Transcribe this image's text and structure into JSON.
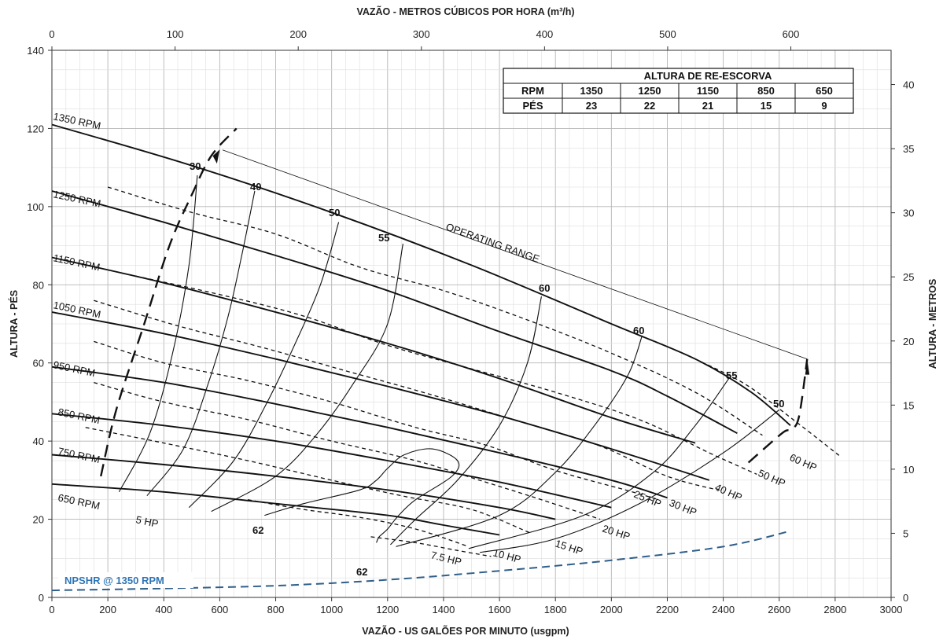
{
  "chart_data": {
    "type": "line",
    "title": "",
    "xlabel": "VAZÃO - US GALÕES POR MINUTO (usgpm)",
    "x2label": "VAZÃO - METROS CÚBICOS POR HORA (m³/h)",
    "ylabel": "ALTURA - PÉS",
    "y2label": "ALTURA - METROS",
    "xlim": [
      0,
      3000
    ],
    "ylim": [
      0,
      140
    ],
    "x2lim": [
      0,
      681.4
    ],
    "y2lim": [
      0,
      42.67
    ],
    "x_ticks": [
      "0",
      "200",
      "400",
      "600",
      "800",
      "1000",
      "1200",
      "1400",
      "1600",
      "1800",
      "2000",
      "2200",
      "2400",
      "2600",
      "2800",
      "3000"
    ],
    "y_ticks": [
      "0",
      "20",
      "40",
      "60",
      "80",
      "100",
      "120",
      "140"
    ],
    "x2_ticks": [
      "0",
      "100",
      "200",
      "300",
      "400",
      "500",
      "600"
    ],
    "y2_ticks": [
      "0",
      "5",
      "10",
      "15",
      "20",
      "25",
      "30",
      "35",
      "40"
    ],
    "grid": true,
    "head_curves": [
      {
        "name": "1350 RPM",
        "x": [
          0,
          500,
          1000,
          1500,
          2000,
          2300,
          2500,
          2640
        ],
        "y": [
          121,
          110.5,
          98.5,
          85,
          70,
          61,
          52.5,
          44
        ]
      },
      {
        "name": "1250 RPM",
        "x": [
          0,
          400,
          800,
          1200,
          1600,
          2000,
          2200,
          2450
        ],
        "y": [
          104,
          96,
          87.5,
          78.5,
          68,
          58,
          51.5,
          42
        ]
      },
      {
        "name": "1150 RPM",
        "x": [
          0,
          400,
          800,
          1200,
          1600,
          2000,
          2300
        ],
        "y": [
          87,
          80.5,
          73,
          65,
          56,
          46,
          39.5
        ]
      },
      {
        "name": "1050 RPM",
        "x": [
          0,
          400,
          800,
          1200,
          1600,
          2000,
          2350
        ],
        "y": [
          73,
          67.5,
          61,
          54,
          46.5,
          38,
          30
        ]
      },
      {
        "name": "950 RPM",
        "x": [
          0,
          400,
          800,
          1200,
          1600,
          2000,
          2200
        ],
        "y": [
          59,
          55,
          49.5,
          43.5,
          37,
          30,
          25.5
        ]
      },
      {
        "name": "850 RPM",
        "x": [
          0,
          400,
          800,
          1200,
          1600,
          2000
        ],
        "y": [
          47,
          44,
          40,
          35,
          29.5,
          23
        ]
      },
      {
        "name": "750 RPM",
        "x": [
          0,
          400,
          800,
          1200,
          1600,
          1800
        ],
        "y": [
          36.5,
          34,
          31,
          27.5,
          23,
          20
        ]
      },
      {
        "name": "650 RPM",
        "x": [
          0,
          400,
          800,
          1200,
          1400,
          1600
        ],
        "y": [
          29,
          27,
          24,
          21,
          18.5,
          16
        ]
      }
    ],
    "power_curves": [
      {
        "name": "60 HP",
        "x": [
          2300,
          2480,
          2650,
          2820
        ],
        "y": [
          61,
          54.5,
          45.5,
          36
        ]
      },
      {
        "name": "50 HP",
        "x": [
          200,
          500,
          800,
          1100,
          1400,
          1700,
          2000,
          2300,
          2540
        ],
        "y": [
          105,
          98.5,
          93,
          84.5,
          78.5,
          71,
          62.5,
          52.5,
          41.5
        ]
      },
      {
        "name": "40 HP",
        "x": [
          250,
          600,
          900,
          1200,
          1500,
          1800,
          2100,
          2350,
          2520
        ],
        "y": [
          83,
          77.5,
          72,
          64.5,
          58.5,
          52.5,
          45.5,
          37,
          31.5
        ]
      },
      {
        "name": "30 HP",
        "x": [
          150,
          450,
          750,
          1050,
          1350,
          1650,
          1950,
          2200,
          2380
        ],
        "y": [
          76,
          69.5,
          64,
          58,
          52,
          45.5,
          39,
          31,
          27.5
        ]
      },
      {
        "name": "25 HP",
        "x": [
          150,
          400,
          700,
          1000,
          1300,
          1550,
          1800,
          2050,
          2170
        ],
        "y": [
          65.5,
          60,
          55.5,
          50,
          43.5,
          39,
          32.5,
          27.5,
          25
        ]
      },
      {
        "name": "20 HP",
        "x": [
          150,
          400,
          700,
          1000,
          1300,
          1550,
          1750,
          1960
        ],
        "y": [
          55,
          50,
          45.5,
          40,
          35,
          29.5,
          25,
          20
        ]
      },
      {
        "name": "15 HP",
        "x": [
          120,
          400,
          700,
          1000,
          1250,
          1500,
          1710
        ],
        "y": [
          43.5,
          39.5,
          35,
          30,
          26,
          22.5,
          16.5
        ]
      },
      {
        "name": "10 HP",
        "x": [
          1140,
          1300,
          1450,
          1570
        ],
        "y": [
          15.5,
          14,
          12,
          10.5
        ]
      },
      {
        "name": "7.5 HP",
        "x": [
          700,
          900,
          1100,
          1300,
          1490
        ],
        "y": [
          25,
          22.5,
          20.5,
          17.5,
          13
        ]
      }
    ],
    "power_labels_only": [
      "5 HP"
    ],
    "efficiency_curves": [
      {
        "label": "30",
        "x": [
          240,
          350,
          430,
          490,
          520
        ],
        "y": [
          27,
          42,
          62,
          85,
          108
        ]
      },
      {
        "label": "40",
        "x": [
          340,
          470,
          560,
          630,
          680,
          725
        ],
        "y": [
          26,
          38,
          55,
          72,
          88,
          104
        ]
      },
      {
        "label": "50",
        "x": [
          490,
          650,
          770,
          870,
          960,
          1025
        ],
        "y": [
          23,
          35,
          50,
          65,
          80,
          96
        ]
      },
      {
        "label": "55",
        "x": [
          570,
          800,
          950,
          1080,
          1200,
          1255
        ],
        "y": [
          22,
          31,
          42,
          55,
          70,
          90.5
        ]
      },
      {
        "label": "62",
        "x": [
          760,
          900,
          1100,
          1160,
          1200,
          1260,
          1360,
          1450,
          1430,
          1300,
          1240,
          1200,
          1170,
          1160
        ],
        "y": [
          21,
          24,
          27.5,
          30,
          33,
          36.5,
          38,
          35,
          31,
          25,
          21,
          17.5,
          15.5,
          14
        ]
      },
      {
        "label": "60",
        "x": [
          1210,
          1300,
          1450,
          1600,
          1700,
          1750
        ],
        "y": [
          13.5,
          20,
          30,
          44,
          60,
          77
        ]
      },
      {
        "label": "60",
        "x": [
          1230,
          1600,
          1800,
          1950,
          2060,
          2110
        ],
        "y": [
          13,
          21,
          32,
          45,
          57,
          67
        ]
      },
      {
        "label": "55",
        "x": [
          1490,
          1900,
          2150,
          2300,
          2420
        ],
        "y": [
          12.5,
          21,
          32,
          44,
          56
        ]
      },
      {
        "label": "50",
        "x": [
          1530,
          1800,
          2100,
          2400,
          2600
        ],
        "y": [
          11.5,
          15,
          24,
          37,
          48
        ]
      }
    ],
    "efficiency_labels_62_bottom": "62",
    "operating_range": {
      "label": "OPERATING RANGE",
      "x": [
        610,
        2700
      ],
      "y": [
        114.5,
        61
      ]
    },
    "boundary_left": {
      "x": [
        175,
        230,
        330,
        420,
        500,
        570,
        660
      ],
      "y": [
        31,
        48,
        70,
        90,
        103,
        113,
        120
      ]
    },
    "boundary_right": {
      "x": [
        2490,
        2610,
        2640,
        2670,
        2700
      ],
      "y": [
        34.5,
        42,
        43,
        46,
        61
      ]
    },
    "npshr": {
      "label": "NPSHR  @ 1350  RPM",
      "x": [
        0,
        400,
        800,
        1200,
        1600,
        2000,
        2400,
        2640
      ],
      "y": [
        1.8,
        2.3,
        3,
        4.5,
        6.8,
        9.5,
        13,
        17
      ]
    },
    "reprime_table": {
      "title": "ALTURA DE RE-ESCORVA",
      "row1_label": "RPM",
      "row2_label": "PÉS",
      "rpm": [
        "1350",
        "1250",
        "1150",
        "850",
        "650"
      ],
      "pes": [
        "23",
        "22",
        "21",
        "15",
        "9"
      ]
    },
    "colors": {
      "curve": "#111111",
      "npshr": "#2f5f8a",
      "npshr_text": "#2e75b6",
      "grid_major": "#b5b5b5",
      "grid_minor": "#dedede"
    }
  }
}
